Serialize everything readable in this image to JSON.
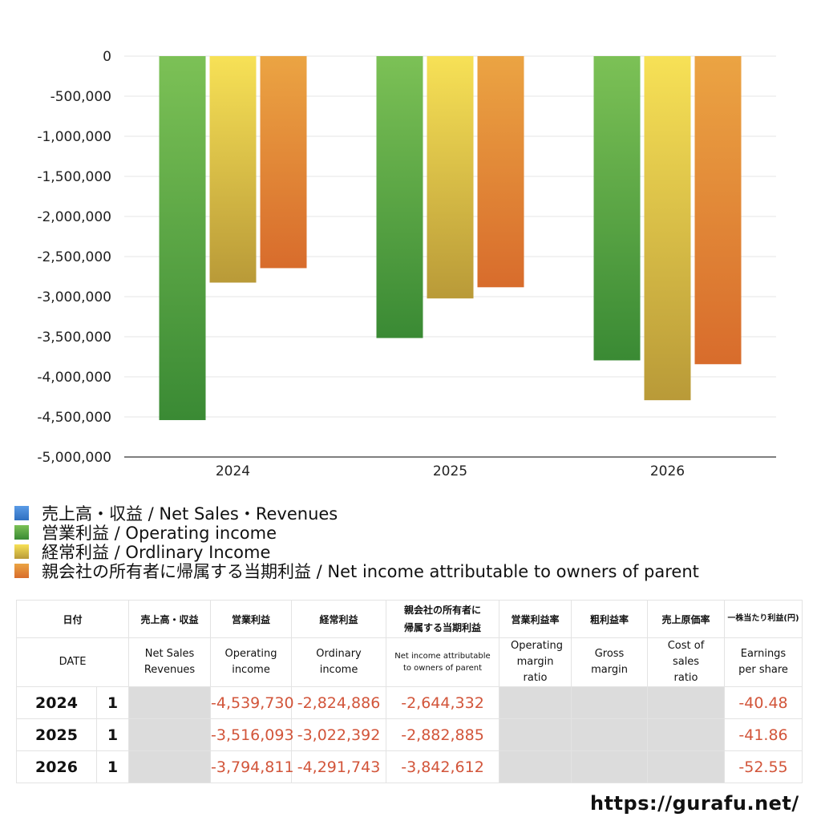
{
  "chart_data": {
    "type": "bar",
    "categories": [
      "2024",
      "2025",
      "2026"
    ],
    "ylim": [
      -5000000,
      0
    ],
    "yticks": [
      0,
      -500000,
      -1000000,
      -1500000,
      -2000000,
      -2500000,
      -3000000,
      -3500000,
      -4000000,
      -4500000,
      -5000000
    ],
    "ytick_labels": [
      "0",
      "-500,000",
      "-1,000,000",
      "-1,500,000",
      "-2,000,000",
      "-2,500,000",
      "-3,000,000",
      "-3,500,000",
      "-4,000,000",
      "-4,500,000",
      "-5,000,000"
    ],
    "series": [
      {
        "name": "売上高・収益 / Net Sales・Revenues",
        "values": [
          null,
          null,
          null
        ],
        "color_top": "#5a9be6",
        "color_bottom": "#2f6fc0"
      },
      {
        "name": "営業利益 / Operating income",
        "values": [
          -4539730,
          -3516093,
          -3794811
        ],
        "color_top": "#7cc156",
        "color_bottom": "#3a8a34"
      },
      {
        "name": "経常利益 / Ordlinary Income",
        "values": [
          -2824886,
          -3022392,
          -4291743
        ],
        "color_top": "#f7e156",
        "color_bottom": "#b99a38"
      },
      {
        "name": "親会社の所有者に帰属する当期利益 / Net income attributable to owners of parent",
        "values": [
          -2644332,
          -2882885,
          -3842612
        ],
        "color_top": "#eba443",
        "color_bottom": "#d86c2c"
      }
    ],
    "title": "",
    "xlabel": "",
    "ylabel": "",
    "grid": true
  },
  "table": {
    "header_jp": [
      "日付",
      "売上高・収益",
      "営業利益",
      "経常利益",
      "親会社の所有者に帰属する当期利益",
      "営業利益率",
      "粗利益率",
      "売上原価率",
      "一株当たり利益(円)"
    ],
    "header_en": [
      "DATE",
      "Net Sales Revenues",
      "Operating income",
      "Ordinary income",
      "Net income attributable to owners of parent",
      "Operating margin ratio",
      "Gross margin",
      "Cost of sales ratio",
      "Earnings per share"
    ],
    "rows": [
      {
        "year": "2024",
        "q": "1",
        "sales": "",
        "op": "-4,539,730",
        "ord": "-2,824,886",
        "net": "-2,644,332",
        "opm": "",
        "gm": "",
        "cos": "",
        "eps": "-40.48"
      },
      {
        "year": "2025",
        "q": "1",
        "sales": "",
        "op": "-3,516,093",
        "ord": "-3,022,392",
        "net": "-2,882,885",
        "opm": "",
        "gm": "",
        "cos": "",
        "eps": "-41.86"
      },
      {
        "year": "2026",
        "q": "1",
        "sales": "",
        "op": "-3,794,811",
        "ord": "-4,291,743",
        "net": "-3,842,612",
        "opm": "",
        "gm": "",
        "cos": "",
        "eps": "-52.55"
      }
    ]
  },
  "footer": {
    "url": "https://gurafu.net/"
  }
}
